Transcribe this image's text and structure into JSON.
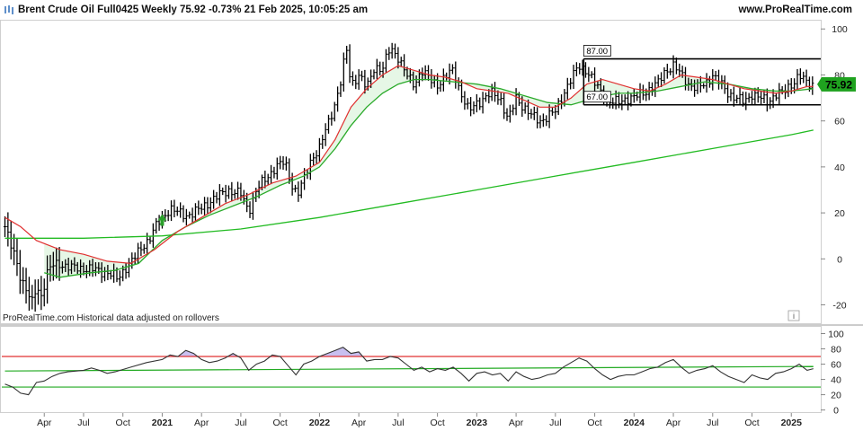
{
  "header": {
    "title": "Brent Crude Oil Full0425 Weekly 75.92 -0.73% 21 Feb 2025, 10:05:25 am",
    "site": "www.ProRealTime.com"
  },
  "footer_note": "ProRealTime.com  Historical data adjusted on rollovers",
  "info_icon": "i",
  "colors": {
    "bars": "#000000",
    "ma_fast": "#e03030",
    "ma_mid": "#2aaa2a",
    "ma_slow": "#22bb22",
    "cloud": "#e6f7e6",
    "rsi_line": "#333333",
    "rsi_upper": "#e03030",
    "rsi_lower": "#22aa22",
    "rsi_overbought_fill": "#c8bff0",
    "price_label_bg": "#1fa21f",
    "signal_arrow": "#2aa02a"
  },
  "chart_data": [
    {
      "type": "bar",
      "subtype": "ohlc-weekly",
      "title": "Brent Crude Oil Full0425 Weekly",
      "last_price": "75.92",
      "change": "-0.73%",
      "y_ticks": [
        100,
        80,
        60,
        40,
        20,
        0,
        -20
      ],
      "ylim": [
        -28,
        104
      ],
      "x_ticks": [
        "Apr",
        "Jul",
        "Oct",
        "2021",
        "Apr",
        "Jul",
        "Oct",
        "2022",
        "Apr",
        "Jul",
        "Oct",
        "2023",
        "Apr",
        "Jul",
        "Oct",
        "2024",
        "Apr",
        "Jul",
        "Oct",
        "2025"
      ],
      "x_tick_years": [
        2020.25,
        2020.5,
        2020.75,
        2021.0,
        2021.25,
        2021.5,
        2021.75,
        2022.0,
        2022.25,
        2022.5,
        2022.75,
        2023.0,
        2023.25,
        2023.5,
        2023.75,
        2024.0,
        2024.25,
        2024.5,
        2024.75,
        2025.0
      ],
      "x_range": [
        2019.98,
        2025.17
      ],
      "close_path": [
        [
          2020.0,
          14
        ],
        [
          2020.04,
          5
        ],
        [
          2020.07,
          0
        ],
        [
          2020.1,
          -8
        ],
        [
          2020.14,
          -14
        ],
        [
          2020.17,
          -20
        ],
        [
          2020.2,
          -12
        ],
        [
          2020.23,
          -16
        ],
        [
          2020.27,
          -6
        ],
        [
          2020.3,
          -3
        ],
        [
          2020.35,
          -2
        ],
        [
          2020.42,
          -4
        ],
        [
          2020.5,
          -4
        ],
        [
          2020.58,
          -5
        ],
        [
          2020.66,
          -6
        ],
        [
          2020.72,
          -9
        ],
        [
          2020.76,
          -4
        ],
        [
          2020.82,
          0
        ],
        [
          2020.88,
          6
        ],
        [
          2020.92,
          9
        ],
        [
          2020.96,
          14
        ],
        [
          2021.0,
          18
        ],
        [
          2021.05,
          22
        ],
        [
          2021.1,
          20
        ],
        [
          2021.15,
          19
        ],
        [
          2021.2,
          20
        ],
        [
          2021.25,
          22
        ],
        [
          2021.3,
          25
        ],
        [
          2021.35,
          27
        ],
        [
          2021.42,
          30
        ],
        [
          2021.5,
          28
        ],
        [
          2021.55,
          21
        ],
        [
          2021.6,
          30
        ],
        [
          2021.66,
          35
        ],
        [
          2021.72,
          40
        ],
        [
          2021.78,
          42
        ],
        [
          2021.82,
          33
        ],
        [
          2021.86,
          28
        ],
        [
          2021.9,
          34
        ],
        [
          2021.95,
          44
        ],
        [
          2022.0,
          48
        ],
        [
          2022.05,
          58
        ],
        [
          2022.1,
          68
        ],
        [
          2022.14,
          78
        ],
        [
          2022.17,
          92
        ],
        [
          2022.2,
          76
        ],
        [
          2022.25,
          80
        ],
        [
          2022.3,
          74
        ],
        [
          2022.35,
          84
        ],
        [
          2022.4,
          82
        ],
        [
          2022.45,
          92
        ],
        [
          2022.5,
          88
        ],
        [
          2022.55,
          80
        ],
        [
          2022.6,
          76
        ],
        [
          2022.65,
          82
        ],
        [
          2022.7,
          78
        ],
        [
          2022.75,
          76
        ],
        [
          2022.8,
          79
        ],
        [
          2022.85,
          82
        ],
        [
          2022.9,
          72
        ],
        [
          2022.95,
          64
        ],
        [
          2023.0,
          68
        ],
        [
          2023.05,
          70
        ],
        [
          2023.1,
          72
        ],
        [
          2023.15,
          70
        ],
        [
          2023.2,
          60
        ],
        [
          2023.25,
          70
        ],
        [
          2023.3,
          66
        ],
        [
          2023.35,
          62
        ],
        [
          2023.4,
          60
        ],
        [
          2023.45,
          62
        ],
        [
          2023.5,
          64
        ],
        [
          2023.55,
          72
        ],
        [
          2023.6,
          78
        ],
        [
          2023.65,
          84
        ],
        [
          2023.7,
          82
        ],
        [
          2023.75,
          76
        ],
        [
          2023.8,
          72
        ],
        [
          2023.85,
          68
        ],
        [
          2023.9,
          68
        ],
        [
          2023.95,
          70
        ],
        [
          2024.0,
          70
        ],
        [
          2024.05,
          72
        ],
        [
          2024.1,
          74
        ],
        [
          2024.15,
          76
        ],
        [
          2024.2,
          82
        ],
        [
          2024.25,
          84
        ],
        [
          2024.3,
          80
        ],
        [
          2024.35,
          76
        ],
        [
          2024.4,
          74
        ],
        [
          2024.45,
          76
        ],
        [
          2024.5,
          80
        ],
        [
          2024.55,
          76
        ],
        [
          2024.6,
          72
        ],
        [
          2024.65,
          70
        ],
        [
          2024.7,
          68
        ],
        [
          2024.75,
          72
        ],
        [
          2024.8,
          70
        ],
        [
          2024.85,
          68
        ],
        [
          2024.9,
          72
        ],
        [
          2024.95,
          72
        ],
        [
          2025.0,
          76
        ],
        [
          2025.05,
          80
        ],
        [
          2025.1,
          76
        ],
        [
          2025.14,
          75.92
        ]
      ],
      "ma_fast_path": [
        [
          2020.0,
          18
        ],
        [
          2020.1,
          14
        ],
        [
          2020.2,
          8
        ],
        [
          2020.35,
          4
        ],
        [
          2020.5,
          2
        ],
        [
          2020.65,
          -1
        ],
        [
          2020.8,
          -2
        ],
        [
          2020.95,
          4
        ],
        [
          2021.1,
          12
        ],
        [
          2021.25,
          18
        ],
        [
          2021.4,
          24
        ],
        [
          2021.55,
          28
        ],
        [
          2021.7,
          33
        ],
        [
          2021.85,
          36
        ],
        [
          2022.0,
          42
        ],
        [
          2022.1,
          52
        ],
        [
          2022.2,
          66
        ],
        [
          2022.3,
          74
        ],
        [
          2022.4,
          80
        ],
        [
          2022.5,
          84
        ],
        [
          2022.6,
          82
        ],
        [
          2022.7,
          80
        ],
        [
          2022.8,
          79
        ],
        [
          2022.9,
          77
        ],
        [
          2023.0,
          74
        ],
        [
          2023.1,
          73
        ],
        [
          2023.2,
          72
        ],
        [
          2023.3,
          69
        ],
        [
          2023.4,
          66
        ],
        [
          2023.5,
          66
        ],
        [
          2023.6,
          70
        ],
        [
          2023.7,
          76
        ],
        [
          2023.8,
          78
        ],
        [
          2023.9,
          76
        ],
        [
          2024.0,
          74
        ],
        [
          2024.1,
          73
        ],
        [
          2024.2,
          76
        ],
        [
          2024.3,
          80
        ],
        [
          2024.4,
          79
        ],
        [
          2024.5,
          78
        ],
        [
          2024.6,
          76
        ],
        [
          2024.7,
          74
        ],
        [
          2024.8,
          73
        ],
        [
          2024.9,
          72
        ],
        [
          2025.0,
          73
        ],
        [
          2025.1,
          75
        ],
        [
          2025.14,
          75
        ]
      ],
      "ma_mid_path": [
        [
          2020.25,
          -6
        ],
        [
          2020.35,
          -8
        ],
        [
          2020.45,
          -7
        ],
        [
          2020.55,
          -6
        ],
        [
          2020.7,
          -5
        ],
        [
          2020.85,
          -2
        ],
        [
          2021.0,
          8
        ],
        [
          2021.15,
          14
        ],
        [
          2021.3,
          19
        ],
        [
          2021.45,
          23
        ],
        [
          2021.6,
          27
        ],
        [
          2021.75,
          32
        ],
        [
          2021.9,
          36
        ],
        [
          2022.0,
          40
        ],
        [
          2022.1,
          48
        ],
        [
          2022.2,
          58
        ],
        [
          2022.3,
          66
        ],
        [
          2022.4,
          72
        ],
        [
          2022.5,
          76
        ],
        [
          2022.6,
          78
        ],
        [
          2022.7,
          78
        ],
        [
          2022.85,
          77
        ],
        [
          2023.0,
          76
        ],
        [
          2023.15,
          74
        ],
        [
          2023.3,
          71
        ],
        [
          2023.45,
          68
        ],
        [
          2023.6,
          67
        ],
        [
          2023.75,
          70
        ],
        [
          2023.9,
          72
        ],
        [
          2024.0,
          72
        ],
        [
          2024.15,
          73
        ],
        [
          2024.3,
          75
        ],
        [
          2024.45,
          77
        ],
        [
          2024.6,
          76
        ],
        [
          2024.75,
          74
        ],
        [
          2024.9,
          73
        ],
        [
          2025.0,
          73
        ],
        [
          2025.14,
          74
        ]
      ],
      "ma_slow_path": [
        [
          2020.0,
          9
        ],
        [
          2020.5,
          9
        ],
        [
          2021.0,
          10
        ],
        [
          2021.5,
          13
        ],
        [
          2022.0,
          18
        ],
        [
          2022.5,
          24
        ],
        [
          2023.0,
          30
        ],
        [
          2023.5,
          36
        ],
        [
          2024.0,
          42
        ],
        [
          2024.5,
          48
        ],
        [
          2025.0,
          54
        ],
        [
          2025.14,
          56
        ]
      ],
      "horizontal_lines": [
        {
          "value": 87,
          "from": 2023.68,
          "label": "87.00"
        },
        {
          "value": 67,
          "from": 2023.68,
          "label": "67.00"
        }
      ],
      "signal_up_arrow": {
        "x": 2021.0,
        "y": 14
      }
    },
    {
      "type": "line",
      "subtype": "oscillator",
      "y_ticks": [
        100,
        80,
        60,
        40,
        20,
        0
      ],
      "ylim": [
        -4,
        110
      ],
      "upper_band": 70,
      "lower_band": 30,
      "mid_line_start": 51,
      "mid_line_end": 57,
      "path": [
        [
          2020.0,
          34
        ],
        [
          2020.05,
          30
        ],
        [
          2020.1,
          22
        ],
        [
          2020.15,
          20
        ],
        [
          2020.2,
          36
        ],
        [
          2020.25,
          38
        ],
        [
          2020.3,
          44
        ],
        [
          2020.35,
          48
        ],
        [
          2020.4,
          50
        ],
        [
          2020.5,
          52
        ],
        [
          2020.55,
          55
        ],
        [
          2020.6,
          52
        ],
        [
          2020.65,
          48
        ],
        [
          2020.7,
          50
        ],
        [
          2020.8,
          56
        ],
        [
          2020.9,
          62
        ],
        [
          2021.0,
          66
        ],
        [
          2021.05,
          72
        ],
        [
          2021.1,
          70
        ],
        [
          2021.15,
          78
        ],
        [
          2021.2,
          74
        ],
        [
          2021.25,
          66
        ],
        [
          2021.3,
          62
        ],
        [
          2021.35,
          64
        ],
        [
          2021.4,
          68
        ],
        [
          2021.45,
          74
        ],
        [
          2021.5,
          68
        ],
        [
          2021.55,
          52
        ],
        [
          2021.6,
          60
        ],
        [
          2021.65,
          64
        ],
        [
          2021.7,
          72
        ],
        [
          2021.75,
          70
        ],
        [
          2021.8,
          58
        ],
        [
          2021.85,
          46
        ],
        [
          2021.9,
          60
        ],
        [
          2021.95,
          64
        ],
        [
          2022.0,
          70
        ],
        [
          2022.05,
          74
        ],
        [
          2022.1,
          78
        ],
        [
          2022.15,
          82
        ],
        [
          2022.2,
          74
        ],
        [
          2022.25,
          76
        ],
        [
          2022.3,
          64
        ],
        [
          2022.35,
          66
        ],
        [
          2022.4,
          66
        ],
        [
          2022.45,
          70
        ],
        [
          2022.5,
          68
        ],
        [
          2022.55,
          60
        ],
        [
          2022.6,
          52
        ],
        [
          2022.65,
          56
        ],
        [
          2022.7,
          50
        ],
        [
          2022.75,
          54
        ],
        [
          2022.8,
          52
        ],
        [
          2022.85,
          56
        ],
        [
          2022.9,
          48
        ],
        [
          2022.95,
          38
        ],
        [
          2023.0,
          48
        ],
        [
          2023.05,
          50
        ],
        [
          2023.1,
          46
        ],
        [
          2023.15,
          48
        ],
        [
          2023.2,
          38
        ],
        [
          2023.25,
          50
        ],
        [
          2023.3,
          44
        ],
        [
          2023.35,
          40
        ],
        [
          2023.4,
          42
        ],
        [
          2023.45,
          46
        ],
        [
          2023.5,
          48
        ],
        [
          2023.55,
          56
        ],
        [
          2023.6,
          62
        ],
        [
          2023.65,
          68
        ],
        [
          2023.7,
          64
        ],
        [
          2023.75,
          54
        ],
        [
          2023.8,
          46
        ],
        [
          2023.85,
          40
        ],
        [
          2023.9,
          44
        ],
        [
          2023.95,
          46
        ],
        [
          2024.0,
          46
        ],
        [
          2024.05,
          50
        ],
        [
          2024.1,
          54
        ],
        [
          2024.15,
          56
        ],
        [
          2024.2,
          62
        ],
        [
          2024.25,
          66
        ],
        [
          2024.3,
          56
        ],
        [
          2024.35,
          48
        ],
        [
          2024.4,
          52
        ],
        [
          2024.45,
          54
        ],
        [
          2024.5,
          58
        ],
        [
          2024.55,
          50
        ],
        [
          2024.6,
          44
        ],
        [
          2024.65,
          40
        ],
        [
          2024.7,
          36
        ],
        [
          2024.75,
          46
        ],
        [
          2024.8,
          42
        ],
        [
          2024.85,
          40
        ],
        [
          2024.9,
          48
        ],
        [
          2024.95,
          50
        ],
        [
          2025.0,
          54
        ],
        [
          2025.05,
          60
        ],
        [
          2025.1,
          52
        ],
        [
          2025.14,
          54
        ]
      ]
    }
  ]
}
